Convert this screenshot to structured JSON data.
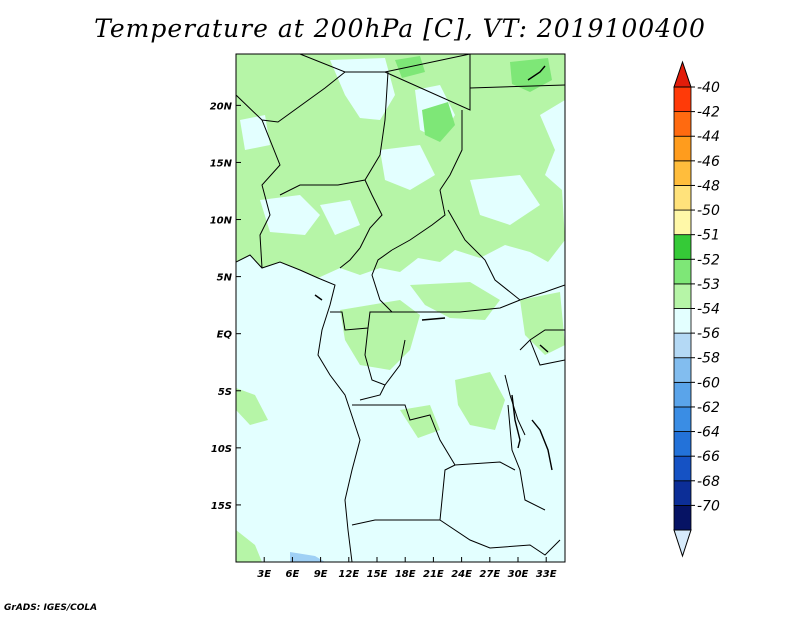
{
  "title": "Temperature at 200hPa [C], VT: 2019100400",
  "footer": "GrADS: IGES/COLA",
  "map": {
    "lat_labels": [
      "20N",
      "15N",
      "10N",
      "5N",
      "EQ",
      "5S",
      "10S",
      "15S"
    ],
    "lon_labels": [
      "3E",
      "6E",
      "9E",
      "12E",
      "15E",
      "18E",
      "21E",
      "24E",
      "27E",
      "30E",
      "33E"
    ],
    "lat_range": [
      -20,
      24.5
    ],
    "lon_range": [
      0,
      35
    ]
  },
  "colorbar": {
    "labels": [
      "-40",
      "-42",
      "-44",
      "-46",
      "-48",
      "-50",
      "-51",
      "-52",
      "-53",
      "-54",
      "-56",
      "-58",
      "-60",
      "-62",
      "-64",
      "-66",
      "-68",
      "-70"
    ],
    "colors": [
      "#d7ebfb",
      "#061364",
      "#0c2e97",
      "#1552c4",
      "#2372d9",
      "#3a8de4",
      "#5aa4ea",
      "#82bdef",
      "#b4d9f5",
      "#e3ffff",
      "#b6f5a7",
      "#7ee777",
      "#35ca37",
      "#fff8a8",
      "#ffe27b",
      "#ffbd3c",
      "#ff9c1d",
      "#ff6a10",
      "#ff3a08",
      "#e21c0a"
    ],
    "colors_order": "bottom-triangle then bands low-to-high then top-triangle"
  },
  "fill_colors": {
    "background": "#e3ffff",
    "green_light": "#b6f5a7",
    "green_mid": "#7ee777",
    "blue_light": "#9fd0f5"
  }
}
